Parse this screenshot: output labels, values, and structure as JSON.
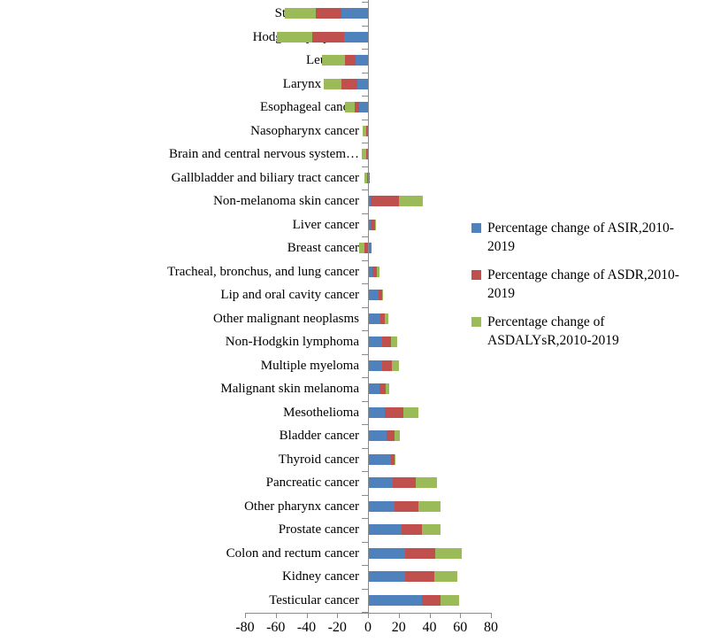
{
  "chart_data": {
    "type": "bar",
    "orientation": "horizontal",
    "stacked": true,
    "grid": false,
    "categories": [
      "Stomach cancer",
      "Hodgkin lymphoma",
      "Leukemia",
      "Larynx cancer",
      "Esophageal cancer",
      "Nasopharynx cancer",
      "Brain and central nervous system…",
      "Gallbladder and biliary tract cancer",
      "Non-melanoma skin cancer",
      "Liver cancer",
      "Breast cancer",
      "Tracheal, bronchus, and lung cancer",
      "Lip and oral cavity cancer",
      "Other malignant neoplasms",
      "Non-Hodgkin lymphoma",
      "Multiple myeloma",
      "Malignant skin melanoma",
      "Mesothelioma",
      "Bladder cancer",
      "Thyroid cancer",
      "Pancreatic cancer",
      "Other pharynx cancer",
      "Prostate cancer",
      "Colon and rectum cancer",
      "Kidney cancer",
      "Testicular cancer"
    ],
    "series": [
      {
        "name": "Percentage change of ASIR,2010-2019",
        "color": "#4F81BD",
        "values": [
          -17.5,
          -15.5,
          -8,
          -7,
          -6,
          -0.5,
          -0.5,
          1,
          2,
          1.5,
          2.5,
          3,
          7,
          8,
          9,
          9,
          7.5,
          11,
          12,
          15,
          16,
          17,
          22,
          24,
          24,
          35
        ]
      },
      {
        "name": "Percentage change of ASDR,2010-2019",
        "color": "#C0504D",
        "values": [
          -16.5,
          -20.5,
          -7,
          -10,
          -2.5,
          -0.5,
          -0.5,
          -0.5,
          18,
          3,
          -2.5,
          2.5,
          2,
          3,
          6,
          6.5,
          4,
          12,
          5.5,
          2.5,
          15,
          16,
          13,
          20,
          19,
          12
        ]
      },
      {
        "name": "Percentage change of ASDALYsR,2010-2019",
        "color": "#9BBB59",
        "values": [
          -20,
          -23,
          -15,
          -12,
          -6.5,
          -2.5,
          -3,
          -2,
          15.5,
          0.5,
          -3.5,
          2,
          0.5,
          2,
          4,
          4.5,
          2.5,
          10,
          3,
          0.5,
          14,
          14,
          12,
          17,
          15,
          12.5
        ]
      }
    ],
    "x_axis": {
      "range": [
        -80,
        80
      ],
      "ticks": [
        -80,
        -60,
        -40,
        -20,
        0,
        20,
        40,
        60,
        80
      ]
    },
    "legend": {
      "position": "right"
    },
    "axis_color": "#8c8c8c"
  }
}
